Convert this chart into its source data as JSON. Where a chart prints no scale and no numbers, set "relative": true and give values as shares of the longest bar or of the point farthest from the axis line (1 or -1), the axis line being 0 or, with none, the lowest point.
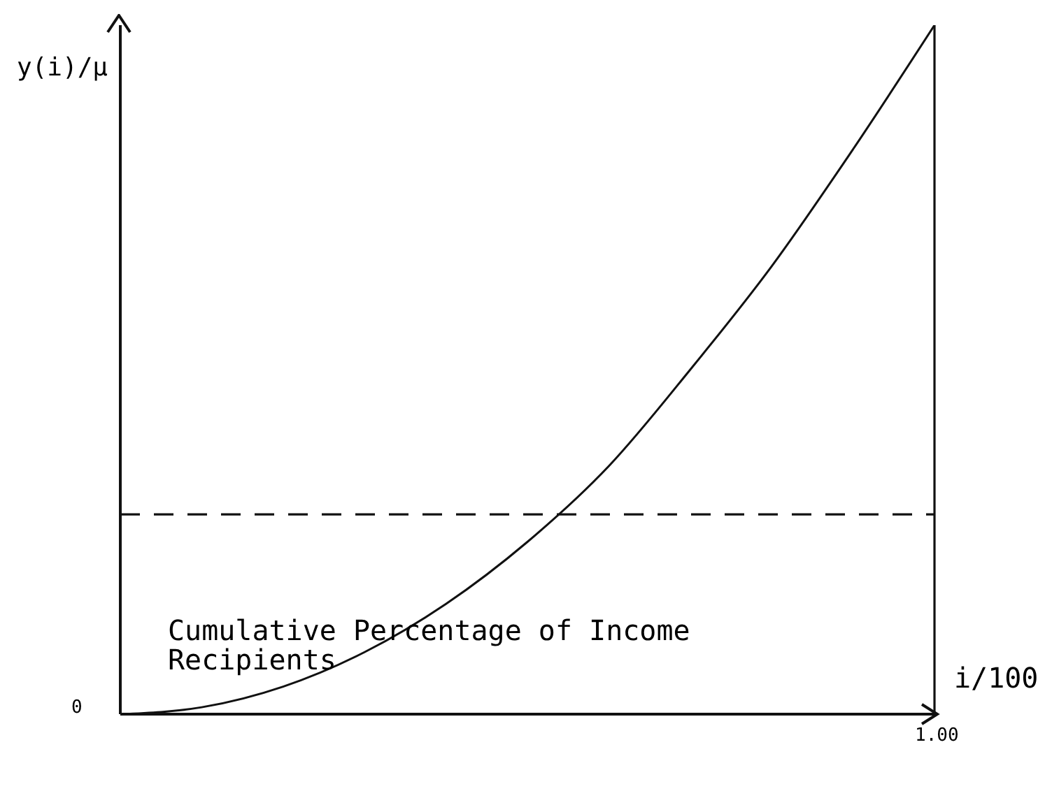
{
  "chart_data": {
    "type": "line",
    "ylabel": "y(i)/μ",
    "xlabel": "i/100",
    "annotations": [
      "Cumulative Percentage of Income Recipients",
      "0",
      "1.00"
    ],
    "categories": [
      null,
      null,
      null,
      null,
      null,
      null,
      null,
      null,
      null,
      null,
      null
    ],
    "series": [
      {
        "color": "#111111",
        "values": [
          0,
          0.01,
          0.04,
          0.09,
          0.16,
          0.25,
          0.36,
          0.5,
          0.65,
          0.82,
          1
        ]
      }
    ],
    "relative": true,
    "ref_lines": [
      {
        "axis": "y",
        "value": 0.29,
        "color": "#111111",
        "line_style": "dashed"
      }
    ],
    "marker": "none",
    "line_style": "solid",
    "grid": false
  }
}
